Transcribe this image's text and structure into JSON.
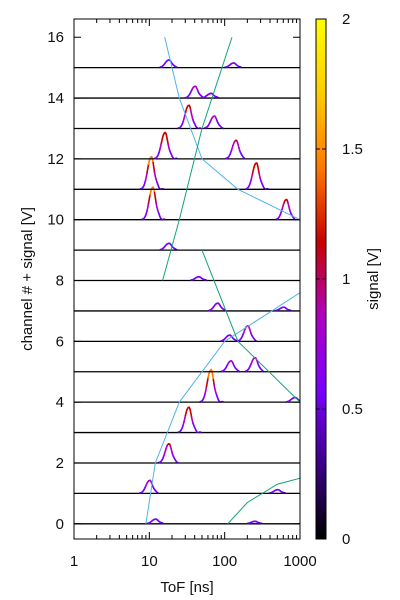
{
  "chart_data": {
    "type": "line",
    "xlabel": "ToF [ns]",
    "ylabel": "channel # + signal [V]",
    "xscale": "log",
    "xlim": [
      1,
      1000
    ],
    "ylim": [
      -0.5,
      16.6
    ],
    "xticks": [
      1,
      10,
      100,
      1000
    ],
    "xtick_labels": [
      "1",
      "10",
      "100",
      "1000"
    ],
    "yticks": [
      0,
      2,
      4,
      6,
      8,
      10,
      12,
      14,
      16
    ],
    "ytick_labels": [
      "0",
      "2",
      "4",
      "6",
      "8",
      "10",
      "12",
      "14",
      "16"
    ],
    "grid": false,
    "legend": "none",
    "colorbar": {
      "label": "signal [V]",
      "range": [
        0,
        2
      ],
      "ticks": [
        0,
        0.5,
        1,
        1.5,
        2
      ],
      "tick_labels": [
        "0",
        "0.5",
        "1",
        "1.5",
        "2"
      ],
      "colormap": [
        "#000000",
        "#3b0086",
        "#7a00ff",
        "#b000c0",
        "#c80000",
        "#ff7800",
        "#ffcc00",
        "#ffff00"
      ]
    },
    "channel_traces": [
      {
        "channel": 0,
        "peaks": [
          {
            "tof_ns": 12,
            "amp_v": 0.15
          },
          {
            "tof_ns": 250,
            "amp_v": 0.08
          }
        ]
      },
      {
        "channel": 1,
        "peaks": [
          {
            "tof_ns": 10,
            "amp_v": 0.42
          },
          {
            "tof_ns": 500,
            "amp_v": 0.12
          }
        ]
      },
      {
        "channel": 2,
        "peaks": [
          {
            "tof_ns": 18,
            "amp_v": 0.62
          }
        ]
      },
      {
        "channel": 3,
        "peaks": [
          {
            "tof_ns": 33,
            "amp_v": 0.82
          }
        ]
      },
      {
        "channel": 4,
        "peaks": [
          {
            "tof_ns": 65,
            "amp_v": 1.05
          },
          {
            "tof_ns": 850,
            "amp_v": 0.15
          }
        ]
      },
      {
        "channel": 5,
        "peaks": [
          {
            "tof_ns": 120,
            "amp_v": 0.35
          },
          {
            "tof_ns": 250,
            "amp_v": 0.45
          }
        ]
      },
      {
        "channel": 6,
        "peaks": [
          {
            "tof_ns": 115,
            "amp_v": 0.2
          },
          {
            "tof_ns": 200,
            "amp_v": 0.5
          }
        ]
      },
      {
        "channel": 7,
        "peaks": [
          {
            "tof_ns": 80,
            "amp_v": 0.25
          },
          {
            "tof_ns": 600,
            "amp_v": 0.12
          }
        ]
      },
      {
        "channel": 8,
        "peaks": [
          {
            "tof_ns": 45,
            "amp_v": 0.12
          }
        ]
      },
      {
        "channel": 9,
        "peaks": [
          {
            "tof_ns": 18,
            "amp_v": 0.22
          }
        ]
      },
      {
        "channel": 10,
        "peaks": [
          {
            "tof_ns": 11,
            "amp_v": 1.05
          },
          {
            "tof_ns": 650,
            "amp_v": 0.65
          }
        ]
      },
      {
        "channel": 11,
        "peaks": [
          {
            "tof_ns": 10.5,
            "amp_v": 1.05
          },
          {
            "tof_ns": 260,
            "amp_v": 0.85
          }
        ]
      },
      {
        "channel": 12,
        "peaks": [
          {
            "tof_ns": 16,
            "amp_v": 0.85
          },
          {
            "tof_ns": 140,
            "amp_v": 0.6
          }
        ]
      },
      {
        "channel": 13,
        "peaks": [
          {
            "tof_ns": 33,
            "amp_v": 0.75
          },
          {
            "tof_ns": 72,
            "amp_v": 0.4
          }
        ]
      },
      {
        "channel": 14,
        "peaks": [
          {
            "tof_ns": 40,
            "amp_v": 0.38
          },
          {
            "tof_ns": 65,
            "amp_v": 0.15
          }
        ]
      },
      {
        "channel": 15,
        "peaks": [
          {
            "tof_ns": 18,
            "amp_v": 0.25
          },
          {
            "tof_ns": 130,
            "amp_v": 0.15
          }
        ]
      }
    ],
    "guide_curves": [
      {
        "color": "#4fb3e8",
        "points": [
          [
            16,
            16
          ],
          [
            25,
            14
          ],
          [
            50,
            12
          ],
          [
            150,
            11
          ],
          [
            1000,
            10
          ]
        ]
      },
      {
        "color": "#12a27a",
        "points": [
          [
            15,
            8
          ],
          [
            25,
            10
          ],
          [
            50,
            13
          ],
          [
            125,
            16
          ]
        ]
      },
      {
        "color": "#4fb3e8",
        "points": [
          [
            9,
            0
          ],
          [
            12,
            2
          ],
          [
            25,
            4
          ],
          [
            100,
            6
          ],
          [
            1000,
            7.6
          ]
        ]
      },
      {
        "color": "#12a27a",
        "points": [
          [
            110,
            0
          ],
          [
            200,
            0.7
          ],
          [
            500,
            1.3
          ],
          [
            1000,
            1.5
          ]
        ]
      },
      {
        "color": "#12a27a",
        "points": [
          [
            50,
            9
          ],
          [
            150,
            6
          ],
          [
            1000,
            4
          ]
        ]
      }
    ]
  }
}
